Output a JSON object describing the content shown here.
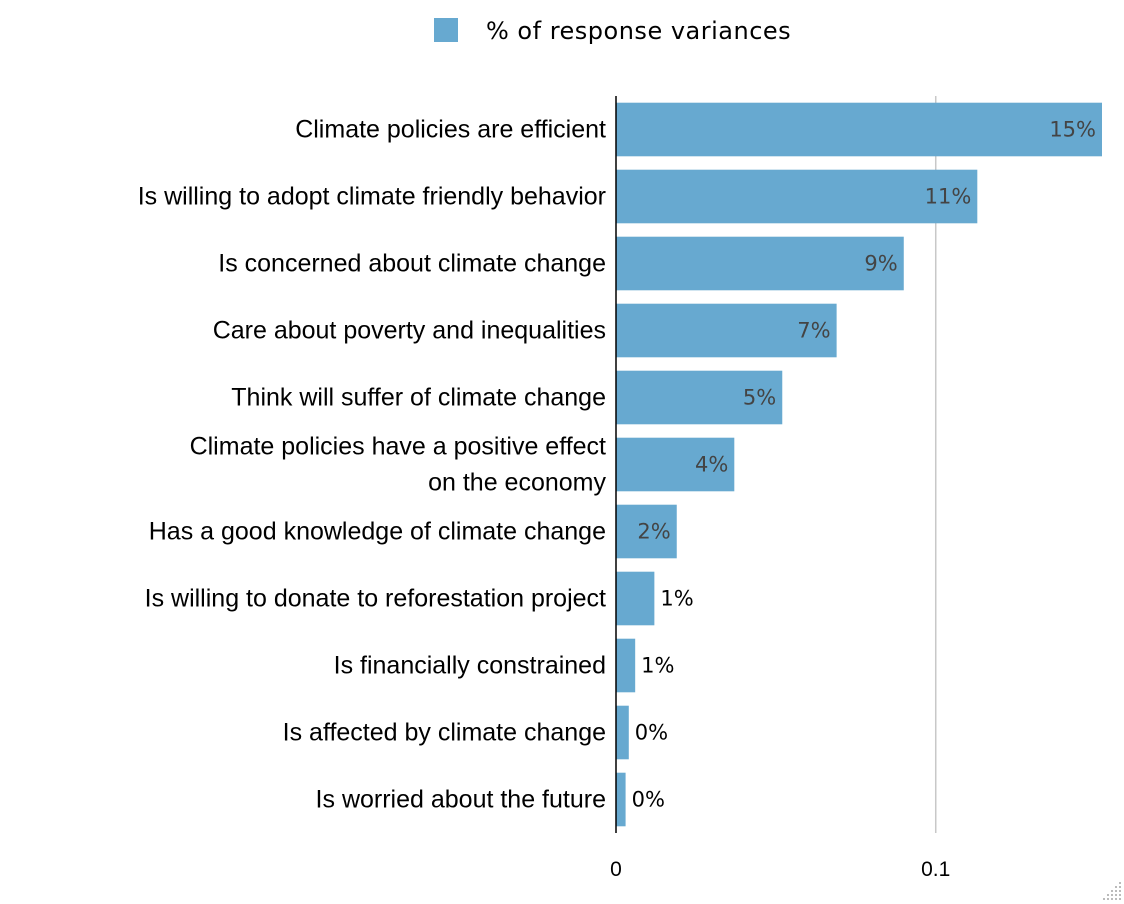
{
  "chart_data": {
    "type": "bar",
    "orientation": "horizontal",
    "categories": [
      [
        "Climate policies are efficient"
      ],
      [
        "Is willing to adopt climate friendly behavior"
      ],
      [
        "Is concerned about climate change"
      ],
      [
        "Care about poverty and inequalities"
      ],
      [
        "Think will suffer of climate change"
      ],
      [
        "Climate policies have a positive effect ",
        "on the economy"
      ],
      [
        "Has a good knowledge of climate change"
      ],
      [
        "Is willing to donate to reforestation project"
      ],
      [
        "Is financially constrained"
      ],
      [
        "Is affected by climate change"
      ],
      [
        "Is worried about the future"
      ]
    ],
    "series": [
      {
        "name": "% of response variances",
        "color": "#67a9d0",
        "values": [
          0.152,
          0.113,
          0.09,
          0.069,
          0.052,
          0.037,
          0.019,
          0.012,
          0.006,
          0.004,
          0.003
        ],
        "labels": [
          "15%",
          "11%",
          "9%",
          "7%",
          "5%",
          "4%",
          "2%",
          "1%",
          "1%",
          "0%",
          "0%"
        ]
      }
    ],
    "xlim": [
      0,
      0.152
    ],
    "xticks": [
      0,
      0.1
    ],
    "xtick_labels": [
      "0",
      "0.1"
    ],
    "grid": true,
    "legend_position": "top-center"
  }
}
